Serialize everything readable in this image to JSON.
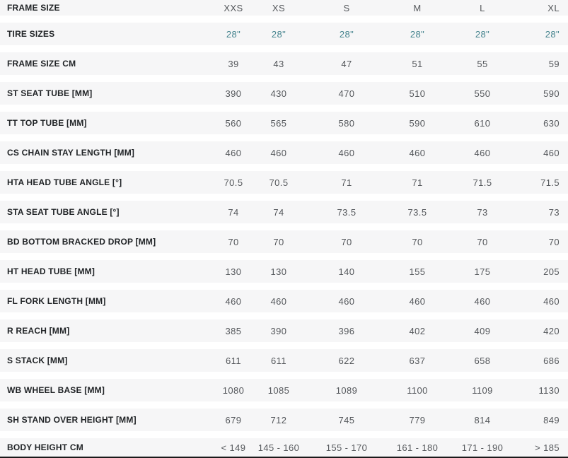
{
  "colors": {
    "accent_teal": "#45848e",
    "label_color": "#212427",
    "value_color": "#55585c",
    "row_bg": "#f6f6f7",
    "border_dark": "#1a1a1a"
  },
  "chart_data": {
    "type": "table",
    "title": "Bike frame geometry table",
    "header": {
      "label": "FRAME SIZE",
      "columns": [
        "XXS",
        "XS",
        "S",
        "M",
        "L",
        "XL"
      ]
    },
    "rows": [
      {
        "label": "TIRE SIZES",
        "accent": true,
        "values": [
          "28\"",
          "28\"",
          "28\"",
          "28\"",
          "28\"",
          "28\""
        ]
      },
      {
        "label": "FRAME SIZE CM",
        "values": [
          "39",
          "43",
          "47",
          "51",
          "55",
          "59"
        ]
      },
      {
        "label": "ST SEAT TUBE [MM]",
        "values": [
          "390",
          "430",
          "470",
          "510",
          "550",
          "590"
        ]
      },
      {
        "label": "TT TOP TUBE [MM]",
        "values": [
          "560",
          "565",
          "580",
          "590",
          "610",
          "630"
        ]
      },
      {
        "label": "CS CHAIN STAY LENGTH [MM]",
        "values": [
          "460",
          "460",
          "460",
          "460",
          "460",
          "460"
        ]
      },
      {
        "label": "HTA HEAD TUBE ANGLE [°]",
        "values": [
          "70.5",
          "70.5",
          "71",
          "71",
          "71.5",
          "71.5"
        ]
      },
      {
        "label": "STA SEAT TUBE ANGLE [°]",
        "values": [
          "74",
          "74",
          "73.5",
          "73.5",
          "73",
          "73"
        ]
      },
      {
        "label": "BD BOTTOM BRACKED DROP [MM]",
        "values": [
          "70",
          "70",
          "70",
          "70",
          "70",
          "70"
        ]
      },
      {
        "label": "HT HEAD TUBE [MM]",
        "values": [
          "130",
          "130",
          "140",
          "155",
          "175",
          "205"
        ]
      },
      {
        "label": "FL FORK LENGTH [MM]",
        "values": [
          "460",
          "460",
          "460",
          "460",
          "460",
          "460"
        ]
      },
      {
        "label": "R REACH [MM]",
        "values": [
          "385",
          "390",
          "396",
          "402",
          "409",
          "420"
        ]
      },
      {
        "label": "S STACK [MM]",
        "values": [
          "611",
          "611",
          "622",
          "637",
          "658",
          "686"
        ]
      },
      {
        "label": "WB WHEEL BASE [MM]",
        "values": [
          "1080",
          "1085",
          "1089",
          "1100",
          "1109",
          "1130"
        ]
      },
      {
        "label": "SH STAND OVER HEIGHT [MM]",
        "values": [
          "679",
          "712",
          "745",
          "779",
          "814",
          "849"
        ]
      },
      {
        "label": "BODY HEIGHT CM",
        "values": [
          "< 149",
          "145 - 160",
          "155 - 170",
          "161 - 180",
          "171 - 190",
          "> 185"
        ]
      }
    ]
  }
}
